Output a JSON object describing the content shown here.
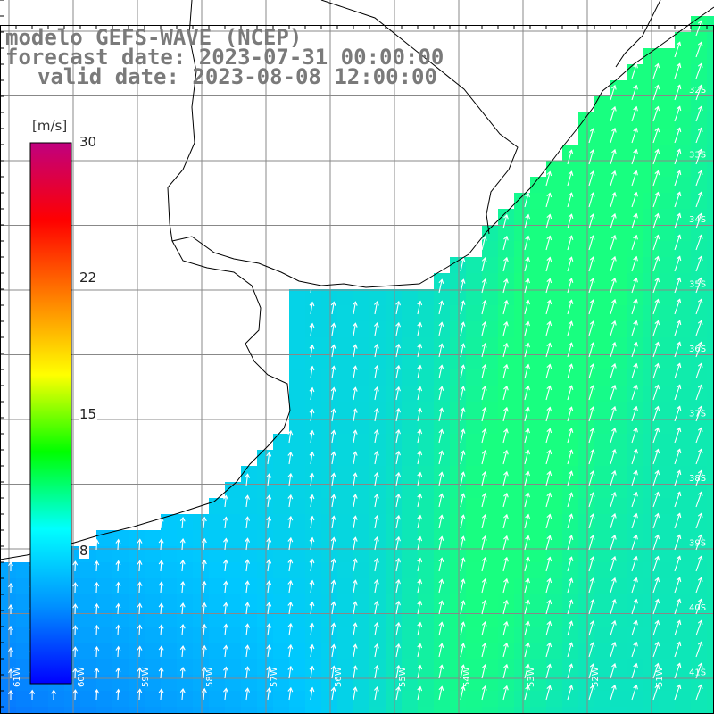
{
  "title": {
    "line1": "modelo GEFS-WAVE (NCEP)",
    "line2": "forecast date: 2023-07-31 00:00:00",
    "line3": "valid date: 2023-08-08 12:00:00"
  },
  "colorbar": {
    "unit": "[m/s]",
    "min": 0,
    "max": 30,
    "tick_labels": [
      "30",
      "22",
      "15",
      "8"
    ],
    "tick_values": [
      30,
      22,
      15,
      8
    ],
    "colors": [
      "#0000ff",
      "#0090ff",
      "#00ffff",
      "#00ff00",
      "#ffff00",
      "#ff7f00",
      "#ff0000",
      "#c0007f"
    ]
  },
  "map": {
    "longitude_labels": [
      "61W",
      "60W",
      "59W",
      "58W",
      "57W",
      "56W",
      "55W",
      "54W",
      "53W",
      "52W",
      "51W"
    ],
    "latitude_labels": [
      "32S",
      "33S",
      "34S",
      "35S",
      "36S",
      "37S",
      "38S",
      "39S",
      "40S",
      "41S"
    ],
    "wind_direction": "northward (south wind), veering NNE on the east",
    "sea_colors": {
      "low": "#0a40ff",
      "mid": "#00c8ff",
      "high": "#18ff80"
    },
    "land_color": "#ffffff",
    "coast_color": "#000000",
    "grid_color": "#888888",
    "arrow_color": "#ffffff"
  }
}
